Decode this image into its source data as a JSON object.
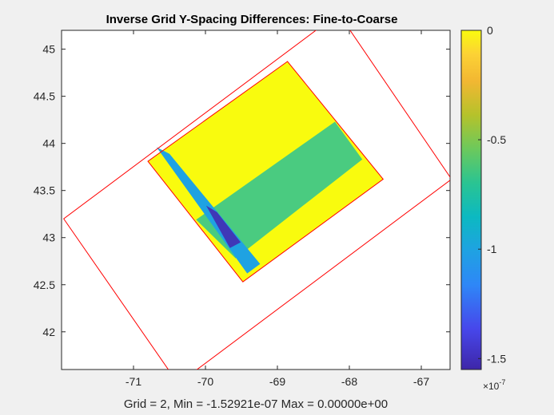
{
  "chart_data": {
    "type": "heatmap",
    "title": "Inverse Grid Y-Spacing Differences: Fine-to-Coarse",
    "xlabel": "Grid = 2,    Min = -1.52921e-07    Max = 0.00000e+00",
    "ylabel": "",
    "xlim": [
      -72.0,
      -66.6
    ],
    "ylim": [
      41.6,
      45.2
    ],
    "xticks": [
      -71,
      -70,
      -69,
      -68,
      -67
    ],
    "yticks": [
      42,
      42.5,
      43,
      43.5,
      44,
      44.5,
      45
    ],
    "colormap": "parula",
    "colorbar": {
      "range": [
        -1.55,
        0
      ],
      "ticks": [
        {
          "value": 0,
          "label": "0"
        },
        {
          "value": -0.5,
          "label": "-0.5"
        },
        {
          "value": -1,
          "label": "-1"
        },
        {
          "value": -1.5,
          "label": "-1.5"
        }
      ],
      "exponent_label": "×10",
      "exponent_power": "-7"
    },
    "coarse_grid_outline": [
      [
        -71.97,
        43.2
      ],
      [
        -70.38,
        41.45
      ],
      [
        -66.58,
        43.62
      ],
      [
        -68.15,
        45.38
      ]
    ],
    "fine_grid_outline": [
      [
        -70.8,
        43.81
      ],
      [
        -69.48,
        42.53
      ],
      [
        -67.53,
        43.62
      ],
      [
        -68.86,
        44.87
      ]
    ],
    "regions": [
      {
        "name": "zero-difference",
        "value": 0,
        "color": "#f9fb0e",
        "polygon": [
          [
            -70.8,
            43.81
          ],
          [
            -69.48,
            42.53
          ],
          [
            -67.53,
            43.62
          ],
          [
            -68.86,
            44.87
          ]
        ]
      },
      {
        "name": "band-horizontal",
        "value": -0.6,
        "color": "#4acb80",
        "polygon": [
          [
            -70.13,
            43.19
          ],
          [
            -69.58,
            42.78
          ],
          [
            -67.82,
            43.83
          ],
          [
            -68.2,
            44.23
          ]
        ]
      },
      {
        "name": "band-vertical",
        "value": -1.0,
        "color": "#1fa2e2",
        "polygon": [
          [
            -70.68,
            43.96
          ],
          [
            -70.5,
            43.89
          ],
          [
            -69.24,
            42.72
          ],
          [
            -69.42,
            42.62
          ]
        ]
      },
      {
        "name": "band-overlap",
        "value": -1.53,
        "color": "#3f37b7",
        "polygon": [
          [
            -69.99,
            43.34
          ],
          [
            -69.84,
            43.27
          ],
          [
            -69.51,
            42.95
          ],
          [
            -69.66,
            42.89
          ]
        ]
      }
    ],
    "grid": false
  }
}
